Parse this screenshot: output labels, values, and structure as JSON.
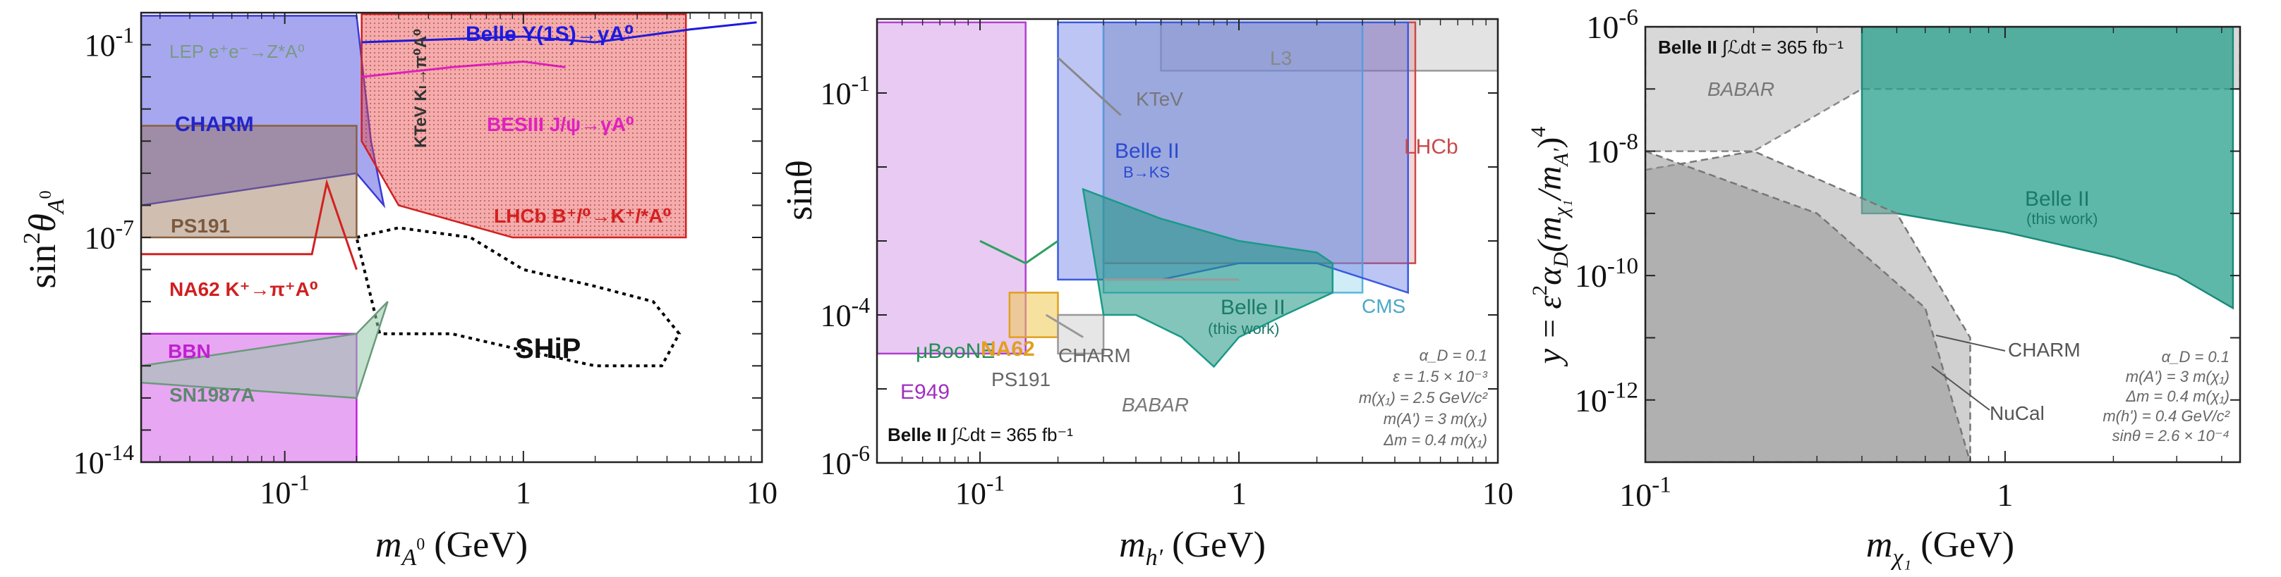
{
  "chart_data": [
    {
      "type": "area",
      "title": "",
      "xlabel": "m_{A^0} (GeV)",
      "xlabel_main": "m",
      "xlabel_sub": "A",
      "xlabel_sup": "0",
      "xlabel_units": "(GeV)",
      "ylabel_main": "sin",
      "ylabel_sup": "2",
      "ylabel_theta": "θ",
      "ylabel_sub": "A",
      "ylabel_subsup": "0",
      "xscale": "log",
      "yscale": "log",
      "xlim": [
        0.025,
        10
      ],
      "ylim": [
        1e-14,
        1.0
      ],
      "xticks": [
        {
          "value": 0.1,
          "base": "10",
          "exp": "-1"
        },
        {
          "value": 1,
          "label": "1"
        },
        {
          "value": 10,
          "label": "10"
        }
      ],
      "yticks": [
        {
          "value": 0.1,
          "base": "10",
          "exp": "-1"
        },
        {
          "value": 1e-07,
          "base": "10",
          "exp": "-7"
        },
        {
          "value": 1e-14,
          "base": "10",
          "exp": "-14"
        }
      ],
      "series": [
        {
          "name": "CHARM",
          "color": "#3a3ad6",
          "fill": "rgba(60,60,220,0.45)",
          "x": [
            0.025,
            0.2,
            0.23,
            0.26,
            0.26,
            0.2,
            0.025
          ],
          "y": [
            0.8,
            0.8,
            0.0001,
            1e-06,
            1e-06,
            1e-05,
            1e-06
          ]
        },
        {
          "name": "LHCb",
          "color": "#d42020",
          "fill": "rgba(230,70,70,0.45)",
          "x": [
            0.21,
            4.8,
            4.8,
            0.9,
            0.3,
            0.21
          ],
          "y": [
            0.9,
            0.9,
            1e-07,
            1e-07,
            1e-06,
            0.0001
          ]
        },
        {
          "name": "SHiP",
          "color": "#000000",
          "fill": "none",
          "x": [
            0.2,
            0.3,
            0.6,
            1,
            2,
            3.5,
            4.5,
            3.8,
            2,
            1,
            0.5,
            0.25,
            0.2
          ],
          "y": [
            1e-07,
            2e-07,
            1e-07,
            1e-08,
            3e-09,
            1e-09,
            1e-10,
            1e-11,
            1e-11,
            3e-11,
            1e-10,
            1e-10,
            1e-07
          ]
        },
        {
          "name": "BBN",
          "color": "#c020e0",
          "fill": "rgba(210,80,230,0.5)",
          "x": [
            0.025,
            0.2,
            0.2,
            0.025
          ],
          "y": [
            1e-10,
            1e-10,
            1e-14,
            1e-14
          ]
        },
        {
          "name": "SN1987A",
          "color": "#6a9a7a",
          "fill": "rgba(150,200,170,0.55)",
          "x": [
            0.025,
            0.2,
            0.27,
            0.2,
            0.025
          ],
          "y": [
            1e-11,
            1e-10,
            1e-09,
            1e-12,
            3e-12
          ]
        },
        {
          "name": "PS191",
          "color": "#8a6040",
          "fill": "rgba(150,110,80,0.45)",
          "x": [
            0.025,
            0.2,
            0.2,
            0.025
          ],
          "y": [
            0.0003,
            0.0003,
            1e-07,
            1e-07
          ]
        },
        {
          "name": "Belle",
          "color": "#1a1ae0",
          "fill": "none",
          "x": [
            0.21,
            0.5,
            1,
            2,
            5,
            9.5
          ],
          "y": [
            0.12,
            0.15,
            0.18,
            0.12,
            0.3,
            0.5
          ]
        },
        {
          "name": "BESIII",
          "color": "#e020c0",
          "fill": "none",
          "x": [
            0.21,
            0.5,
            1,
            1.5
          ],
          "y": [
            0.01,
            0.02,
            0.03,
            0.02
          ]
        },
        {
          "name": "NA62",
          "color": "#d42020",
          "fill": "none",
          "x": [
            0.025,
            0.13,
            0.15,
            0.2
          ],
          "y": [
            3e-08,
            3e-08,
            5e-06,
            1e-08
          ]
        }
      ],
      "labels": {
        "lep": "LEP e⁺e⁻→Z*A⁰",
        "charm": "CHARM",
        "ps191": "PS191",
        "na62": "NA62 K⁺→π⁺A⁰",
        "bbn": "BBN",
        "sn1987a": "SN1987A",
        "belle": "Belle  Υ(1S)→γA⁰",
        "besiii": "BESIII  J/ψ→γA⁰",
        "lhcb": "LHCb B⁺/⁰→K⁺/*A⁰",
        "ktev": "KTeV Kₗ→π⁰A⁰",
        "ship": "SHiP"
      }
    },
    {
      "type": "area",
      "title": "",
      "xlabel_main": "m",
      "xlabel_sub": "h′",
      "xlabel_units": "(GeV)",
      "ylabel": "sinθ",
      "xscale": "log",
      "yscale": "log",
      "xlim": [
        0.04,
        10
      ],
      "ylim": [
        1e-06,
        1
      ],
      "xticks": [
        {
          "value": 0.1,
          "base": "10",
          "exp": "-1"
        },
        {
          "value": 1,
          "label": "1"
        },
        {
          "value": 10,
          "label": "10"
        }
      ],
      "yticks": [
        {
          "value": 0.1,
          "base": "10",
          "exp": "-1"
        },
        {
          "value": 0.0001,
          "base": "10",
          "exp": "-4"
        },
        {
          "value": 1e-06,
          "base": "10",
          "exp": "-6"
        }
      ],
      "series": [
        {
          "name": "Belle II (this work)",
          "color": "#1a9a88",
          "fill": "rgba(30,150,130,0.55)",
          "x": [
            0.25,
            0.5,
            1,
            2,
            2.3,
            2.3,
            1.5,
            1,
            0.8,
            0.6,
            0.4,
            0.3,
            0.25
          ],
          "y": [
            0.005,
            0.002,
            0.001,
            0.0007,
            0.0005,
            0.0002,
            0.0001,
            5e-05,
            2e-05,
            5e-05,
            0.0001,
            0.0001,
            0.005
          ]
        },
        {
          "name": "Belle II B→KS",
          "color": "#3a5ae0",
          "fill": "rgba(90,110,230,0.4)",
          "x": [
            0.2,
            0.5,
            1,
            2,
            4.5,
            4.5,
            2,
            1,
            0.5,
            0.2
          ],
          "y": [
            0.9,
            0.9,
            0.9,
            0.9,
            0.9,
            0.0002,
            0.0005,
            0.0005,
            0.0003,
            0.0003
          ]
        },
        {
          "name": "LHCb",
          "color": "#c84a4a",
          "fill": "rgba(220,120,120,0.3)",
          "x": [
            0.3,
            4.8,
            4.8,
            0.3
          ],
          "y": [
            0.9,
            0.9,
            0.0005,
            0.0005
          ]
        },
        {
          "name": "KTeV",
          "color": "#888888",
          "fill": "none",
          "x": [
            0.2,
            0.35
          ],
          "y": [
            0.3,
            0.05
          ]
        },
        {
          "name": "L3",
          "color": "#999999",
          "fill": "rgba(200,200,200,0.5)",
          "x": [
            0.5,
            10,
            10,
            0.5
          ],
          "y": [
            1,
            1,
            0.2,
            0.2
          ]
        },
        {
          "name": "CMS",
          "color": "#5ab8d8",
          "fill": "rgba(120,200,230,0.35)",
          "x": [
            0.3,
            3,
            3,
            0.3
          ],
          "y": [
            0.9,
            0.9,
            0.0002,
            0.0002
          ]
        },
        {
          "name": "E949",
          "color": "#b040d0",
          "fill": "rgba(210,150,230,0.5)",
          "x": [
            0.04,
            0.15,
            0.15,
            0.04
          ],
          "y": [
            0.9,
            0.9,
            3e-05,
            3e-05
          ]
        },
        {
          "name": "NA62",
          "color": "#e0a020",
          "fill": "rgba(240,200,80,0.55)",
          "x": [
            0.13,
            0.2,
            0.2,
            0.13
          ],
          "y": [
            0.0002,
            0.0002,
            5e-05,
            5e-05
          ]
        },
        {
          "name": "μBooNE",
          "color": "#30a060",
          "fill": "none",
          "x": [
            0.1,
            0.15,
            0.2
          ],
          "y": [
            0.001,
            0.0005,
            0.001
          ]
        },
        {
          "name": "CHARM",
          "color": "#999999",
          "fill": "rgba(200,200,200,0.45)",
          "x": [
            0.2,
            0.3,
            0.3,
            0.2
          ],
          "y": [
            0.0001,
            0.0001,
            3e-05,
            3e-05
          ]
        },
        {
          "name": "PS191",
          "color": "#999999",
          "fill": "none",
          "x": [
            0.18,
            0.25
          ],
          "y": [
            0.0001,
            5e-05
          ]
        },
        {
          "name": "BABAR",
          "color": "#999999",
          "fill": "none",
          "x": [
            0.3,
            1
          ],
          "y": [
            0.0003,
            0.0003
          ]
        }
      ],
      "labels": {
        "l3": "L3",
        "ktev": "KTeV",
        "belle2": "Belle II",
        "belle2_sub": "B→KS",
        "belle2_work": "Belle II",
        "belle2_work_sub": "(this work)",
        "lhcb": "LHCb",
        "cms": "CMS",
        "uboone": "μBooNE",
        "e949": "E949",
        "na62": "NA62",
        "charm": "CHARM",
        "ps191": "PS191",
        "babar": "BABAR",
        "lumi_prefix": "Belle II",
        "lumi_text": "∫ℒdt = 365 fb⁻¹",
        "params": [
          "α_D = 0.1",
          "ε = 1.5 × 10⁻³",
          "m(χ₁) = 2.5 GeV/c²",
          "m(A') = 3 m(χ₁)",
          "Δm = 0.4 m(χ₁)"
        ]
      }
    },
    {
      "type": "area",
      "title": "",
      "xlabel_main": "m",
      "xlabel_sub": "χ₁",
      "xlabel_units": "(GeV)",
      "ylabel": "y = ε²α_D(m_χ₁/m_A′)⁴",
      "ylabel_y": "y = ε",
      "ylabel_alpha": "α",
      "ylabel_D": "D",
      "ylabel_frac": "(m",
      "ylabel_chi": "χ₁",
      "ylabel_slash": "/m",
      "ylabel_A": "A′",
      "ylabel_close": ")",
      "ylabel_pow": "4",
      "ylabel_sq": "2",
      "xscale": "log",
      "yscale": "log",
      "xlim": [
        0.1,
        4.5
      ],
      "ylim": [
        1e-13,
        1e-06
      ],
      "xticks": [
        {
          "value": 0.1,
          "base": "10",
          "exp": "-1"
        },
        {
          "value": 1,
          "label": "1"
        }
      ],
      "yticks": [
        {
          "value": 1e-06,
          "base": "10",
          "exp": "-6"
        },
        {
          "value": 1e-08,
          "base": "10",
          "exp": "-8"
        },
        {
          "value": 1e-10,
          "base": "10",
          "exp": "-10"
        },
        {
          "value": 1e-12,
          "base": "10",
          "exp": "-12"
        }
      ],
      "series": [
        {
          "name": "BABAR",
          "color": "#888888",
          "fill": "rgba(190,190,190,0.6)",
          "x": [
            0.1,
            4.5,
            4.5,
            0.4,
            0.2,
            0.1
          ],
          "y": [
            1e-06,
            1e-06,
            1e-07,
            1e-07,
            1e-08,
            1e-08
          ]
        },
        {
          "name": "Belle II (this work)",
          "color": "#1a8a78",
          "fill": "rgba(40,160,140,0.75)",
          "x": [
            0.4,
            4.3,
            4.3,
            3,
            2,
            1,
            0.5,
            0.4
          ],
          "y": [
            1e-06,
            1e-06,
            3e-11,
            1e-10,
            2e-10,
            5e-10,
            1e-09,
            1e-09
          ]
        },
        {
          "name": "CHARM",
          "color": "#777777",
          "fill": "rgba(170,170,170,0.55)",
          "x": [
            0.1,
            0.2,
            0.5,
            0.8,
            0.8,
            0.5,
            0.2,
            0.1
          ],
          "y": [
            5e-09,
            1e-08,
            1e-09,
            1e-11,
            1e-13,
            1e-13,
            1e-13,
            1e-13
          ]
        },
        {
          "name": "NuCal",
          "color": "#777777",
          "fill": "rgba(150,150,150,0.55)",
          "x": [
            0.1,
            0.3,
            0.6,
            0.8,
            0.8,
            0.1
          ],
          "y": [
            1e-08,
            1e-09,
            3e-11,
            1e-13,
            1e-13,
            1e-13
          ]
        }
      ],
      "labels": {
        "babar": "BABAR",
        "belle2": "Belle II",
        "belle2_sub": "(this work)",
        "charm": "CHARM",
        "nucal": "NuCal",
        "lumi_prefix": "Belle II",
        "lumi_text": "∫ℒdt = 365 fb⁻¹",
        "params": [
          "α_D = 0.1",
          "m(A') = 3 m(χ₁)",
          "Δm = 0.4 m(χ₁)",
          "m(h') = 0.4 GeV/c²",
          "sinθ = 2.6 × 10⁻⁴"
        ]
      }
    }
  ]
}
